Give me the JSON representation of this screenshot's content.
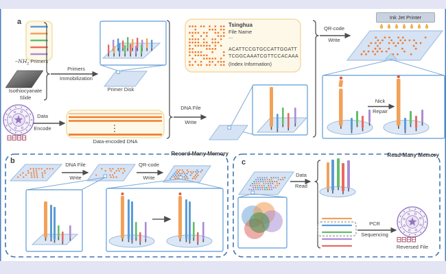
{
  "colors": {
    "banner": "#e4e5f4",
    "edge_blue": "#4d7ebf",
    "panel_dash": "#3f74ae",
    "box_blue": "#5b9bd5",
    "mag_line": "#7fa8d4",
    "slide_fill": "#d5e3f4",
    "slide_stroke": "#9ab9dd",
    "platform_fill": "#dce8f6",
    "ellipse_fill": "#dce8f7",
    "cream_fill": "#fdf8e8",
    "cream_stroke": "#f3dfa5",
    "card_stroke": "#f5d9a8",
    "dot_orange": "#ee7a2f",
    "bar_blue": "#5b9bd5",
    "bar_orange": "#f2a159",
    "bar_green": "#62bd69",
    "bar_red": "#e96a5f",
    "bar_purple": "#ab8bd4",
    "line_orange": "#ee7d2e",
    "line_orange_light": "#f7b077",
    "arrow": "#4d4d4d",
    "seal_purple": "#8f76bd",
    "seal_red": "#a84f66",
    "printer_bg": "#c9d2de",
    "droplet": "#f6bb43",
    "droplet_stroke": "#e8912d",
    "nick_dot": "#e4593f",
    "foot": "#5a5a5a",
    "venn_blue": "#6fa8d8",
    "venn_orange": "#f09a4e",
    "venn_purple": "#a98fd6",
    "venn_red": "#e06a60",
    "venn_green": "#3f8f45"
  },
  "panel_a": {
    "label": "a",
    "primers_prefix": "−",
    "primers_math": "NH",
    "primers_sub": "2",
    "primers_suffix": " Primers",
    "isothiocyanate_line1": "Isothiocyanate",
    "isothiocyanate_line2": "Slide",
    "immobilization_line1": "Primers",
    "immobilization_line2": "Immobilization",
    "primer_disk": "Primer Disk",
    "data_encode_line1": "Data",
    "data_encode_line2": "Encode",
    "encoded_dna": "Data-encoded DNA",
    "dna_write_line1": "DNA File",
    "dna_write_line2": "Write",
    "file_card": {
      "title": "Tsinghua",
      "file_name": "File Name",
      "ellipsis": "...",
      "seq1": "ACATTCCGTGCCATTGGATT",
      "seq2": "TCGGCAAATCGTTCCACAAA",
      "index_info": "(Index Information)"
    },
    "qr_write_line1": "QR-code",
    "qr_write_line2": "Write",
    "printer": "Ink Jet Printer",
    "nick_line1": "Nick",
    "nick_line2": "Repair"
  },
  "panel_b": {
    "label": "b",
    "title": "Record-Many Memory",
    "dna_write_line1": "DNA File",
    "dna_write_line2": "Write",
    "qr_write_line1": "QR-code",
    "qr_write_line2": "Write"
  },
  "panel_c": {
    "label": "c",
    "title": "Read-Many Memory",
    "data_read_line1": "Data",
    "data_read_line2": "Read",
    "pcr_line1": "PCR",
    "pcr_line2": "Sequencing",
    "reversed_file": "Reversed File"
  }
}
